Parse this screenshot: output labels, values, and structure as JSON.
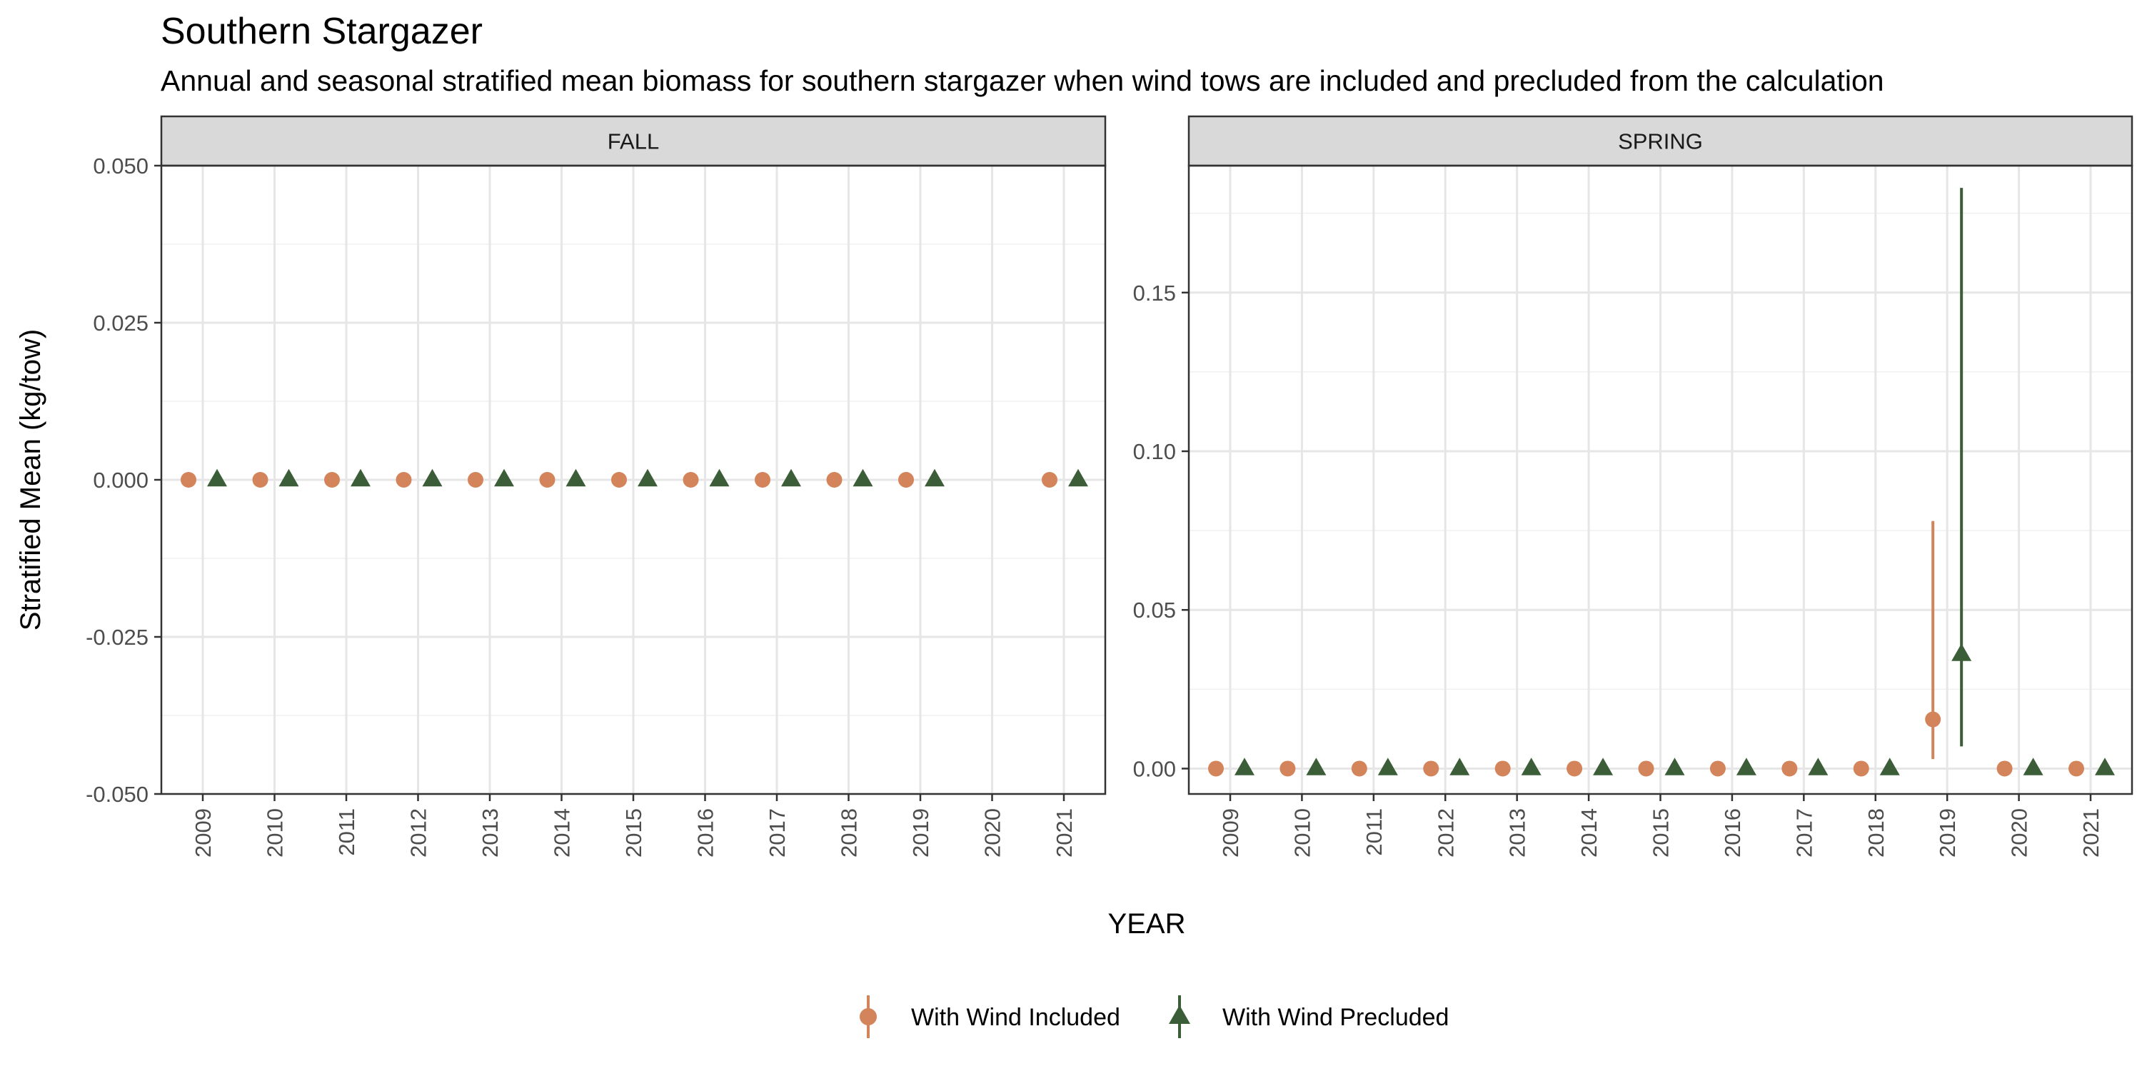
{
  "chart_data": {
    "type": "scatter",
    "title": "Southern Stargazer",
    "subtitle": "Annual and seasonal stratified mean biomass for southern stargazer when wind tows are included and precluded from the calculation",
    "xlabel": "YEAR",
    "ylabel": "Stratified Mean (kg/tow)",
    "legend_position": "bottom",
    "grid": true,
    "series_meta": [
      {
        "name": "With Wind Included",
        "color": "#D4845A",
        "marker": "circle"
      },
      {
        "name": "With Wind Precluded",
        "color": "#3B5E38",
        "marker": "triangle"
      }
    ],
    "panels": [
      {
        "facet": "FALL",
        "ylim": [
          -0.05,
          0.05
        ],
        "yticks": [
          "-0.050",
          "-0.025",
          "0.000",
          "0.025",
          "0.050"
        ],
        "ytick_values": [
          -0.05,
          -0.025,
          0,
          0.025,
          0.05
        ],
        "x": [
          "2009",
          "2010",
          "2011",
          "2012",
          "2013",
          "2014",
          "2015",
          "2016",
          "2017",
          "2018",
          "2019",
          "2020",
          "2021"
        ],
        "series": [
          {
            "name": "With Wind Included",
            "points": [
              {
                "x": "2009",
                "y": 0,
                "lo": 0,
                "hi": 0
              },
              {
                "x": "2010",
                "y": 0,
                "lo": 0,
                "hi": 0
              },
              {
                "x": "2011",
                "y": 0,
                "lo": 0,
                "hi": 0
              },
              {
                "x": "2012",
                "y": 0,
                "lo": 0,
                "hi": 0
              },
              {
                "x": "2013",
                "y": 0,
                "lo": 0,
                "hi": 0
              },
              {
                "x": "2014",
                "y": 0,
                "lo": 0,
                "hi": 0
              },
              {
                "x": "2015",
                "y": 0,
                "lo": 0,
                "hi": 0
              },
              {
                "x": "2016",
                "y": 0,
                "lo": 0,
                "hi": 0
              },
              {
                "x": "2017",
                "y": 0,
                "lo": 0,
                "hi": 0
              },
              {
                "x": "2018",
                "y": 0,
                "lo": 0,
                "hi": 0
              },
              {
                "x": "2019",
                "y": 0,
                "lo": 0,
                "hi": 0
              },
              {
                "x": "2021",
                "y": 0,
                "lo": 0,
                "hi": 0
              }
            ]
          },
          {
            "name": "With Wind Precluded",
            "points": [
              {
                "x": "2009",
                "y": 0,
                "lo": 0,
                "hi": 0
              },
              {
                "x": "2010",
                "y": 0,
                "lo": 0,
                "hi": 0
              },
              {
                "x": "2011",
                "y": 0,
                "lo": 0,
                "hi": 0
              },
              {
                "x": "2012",
                "y": 0,
                "lo": 0,
                "hi": 0
              },
              {
                "x": "2013",
                "y": 0,
                "lo": 0,
                "hi": 0
              },
              {
                "x": "2014",
                "y": 0,
                "lo": 0,
                "hi": 0
              },
              {
                "x": "2015",
                "y": 0,
                "lo": 0,
                "hi": 0
              },
              {
                "x": "2016",
                "y": 0,
                "lo": 0,
                "hi": 0
              },
              {
                "x": "2017",
                "y": 0,
                "lo": 0,
                "hi": 0
              },
              {
                "x": "2018",
                "y": 0,
                "lo": 0,
                "hi": 0
              },
              {
                "x": "2019",
                "y": 0,
                "lo": 0,
                "hi": 0
              },
              {
                "x": "2021",
                "y": 0,
                "lo": 0,
                "hi": 0
              }
            ]
          }
        ]
      },
      {
        "facet": "SPRING",
        "ylim": [
          -0.008,
          0.19
        ],
        "yticks": [
          "0.00",
          "0.05",
          "0.10",
          "0.15"
        ],
        "ytick_values": [
          0,
          0.05,
          0.1,
          0.15
        ],
        "x": [
          "2009",
          "2010",
          "2011",
          "2012",
          "2013",
          "2014",
          "2015",
          "2016",
          "2017",
          "2018",
          "2019",
          "2020",
          "2021"
        ],
        "series": [
          {
            "name": "With Wind Included",
            "points": [
              {
                "x": "2009",
                "y": 0,
                "lo": 0,
                "hi": 0
              },
              {
                "x": "2010",
                "y": 0,
                "lo": 0,
                "hi": 0
              },
              {
                "x": "2011",
                "y": 0,
                "lo": 0,
                "hi": 0
              },
              {
                "x": "2012",
                "y": 0,
                "lo": 0,
                "hi": 0
              },
              {
                "x": "2013",
                "y": 0,
                "lo": 0,
                "hi": 0
              },
              {
                "x": "2014",
                "y": 0,
                "lo": 0,
                "hi": 0
              },
              {
                "x": "2015",
                "y": 0,
                "lo": 0,
                "hi": 0
              },
              {
                "x": "2016",
                "y": 0,
                "lo": 0,
                "hi": 0
              },
              {
                "x": "2017",
                "y": 0,
                "lo": 0,
                "hi": 0
              },
              {
                "x": "2018",
                "y": 0,
                "lo": 0,
                "hi": 0
              },
              {
                "x": "2019",
                "y": 0.0155,
                "lo": 0.003,
                "hi": 0.078
              },
              {
                "x": "2020",
                "y": 0,
                "lo": 0,
                "hi": 0
              },
              {
                "x": "2021",
                "y": 0,
                "lo": 0,
                "hi": 0
              }
            ]
          },
          {
            "name": "With Wind Precluded",
            "points": [
              {
                "x": "2009",
                "y": 0,
                "lo": 0,
                "hi": 0
              },
              {
                "x": "2010",
                "y": 0,
                "lo": 0,
                "hi": 0
              },
              {
                "x": "2011",
                "y": 0,
                "lo": 0,
                "hi": 0
              },
              {
                "x": "2012",
                "y": 0,
                "lo": 0,
                "hi": 0
              },
              {
                "x": "2013",
                "y": 0,
                "lo": 0,
                "hi": 0
              },
              {
                "x": "2014",
                "y": 0,
                "lo": 0,
                "hi": 0
              },
              {
                "x": "2015",
                "y": 0,
                "lo": 0,
                "hi": 0
              },
              {
                "x": "2016",
                "y": 0,
                "lo": 0,
                "hi": 0
              },
              {
                "x": "2017",
                "y": 0,
                "lo": 0,
                "hi": 0
              },
              {
                "x": "2018",
                "y": 0,
                "lo": 0,
                "hi": 0
              },
              {
                "x": "2019",
                "y": 0.036,
                "lo": 0.007,
                "hi": 0.183
              },
              {
                "x": "2020",
                "y": 0,
                "lo": 0,
                "hi": 0
              },
              {
                "x": "2021",
                "y": 0,
                "lo": 0,
                "hi": 0
              }
            ]
          }
        ]
      }
    ]
  }
}
